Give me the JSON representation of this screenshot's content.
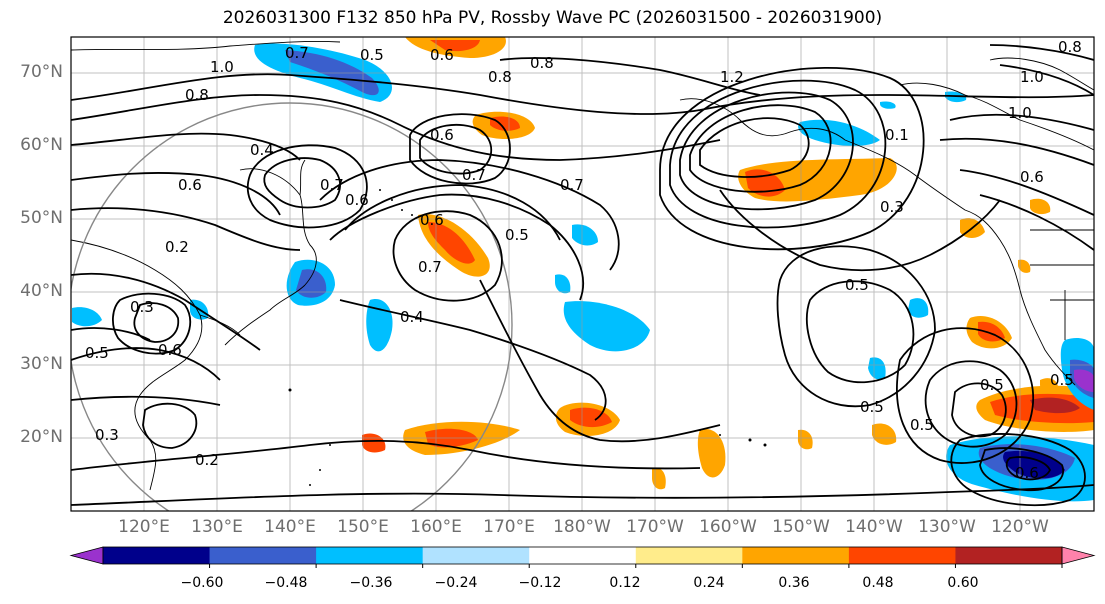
{
  "title": "2026031300 F132 850 hPa PV, Rossby Wave PC (2026031500 - 2026031900)",
  "lat_labels": [
    "70°N",
    "60°N",
    "50°N",
    "40°N",
    "30°N",
    "20°N"
  ],
  "lon_labels": [
    "120°E",
    "130°E",
    "140°E",
    "150°E",
    "160°E",
    "170°E",
    "180°W",
    "170°W",
    "160°W",
    "150°W",
    "140°W",
    "130°W",
    "120°W"
  ],
  "colorbar": {
    "tick_labels": [
      "−0.60",
      "−0.48",
      "−0.36",
      "−0.24",
      "−0.12",
      "0.12",
      "0.24",
      "0.36",
      "0.48",
      "0.60"
    ],
    "colors": [
      "#9a32cd",
      "#00008b",
      "#3a5fcd",
      "#00bfff",
      "#b0e2ff",
      "#ffffff",
      "#ffec8b",
      "#ffa500",
      "#ff4500",
      "#b22222",
      "#ff82ab"
    ]
  },
  "contour_labels": [
    "0.5",
    "0.7",
    "1.0",
    "0.8",
    "0.6",
    "0.8",
    "0.8",
    "1.2",
    "1.0",
    "1.0",
    "0.6",
    "0.8",
    "0.4",
    "0.6",
    "0.7",
    "0.7",
    "0.7",
    "0.6",
    "0.6",
    "0.6",
    "0.5",
    "0.7",
    "0.2",
    "0.3",
    "0.4",
    "0.6",
    "0.5",
    "0.3",
    "0.5",
    "0.5",
    "0.5",
    "0.5",
    "0.5",
    "0.6",
    "0.2",
    "0.3",
    "0.1"
  ]
}
